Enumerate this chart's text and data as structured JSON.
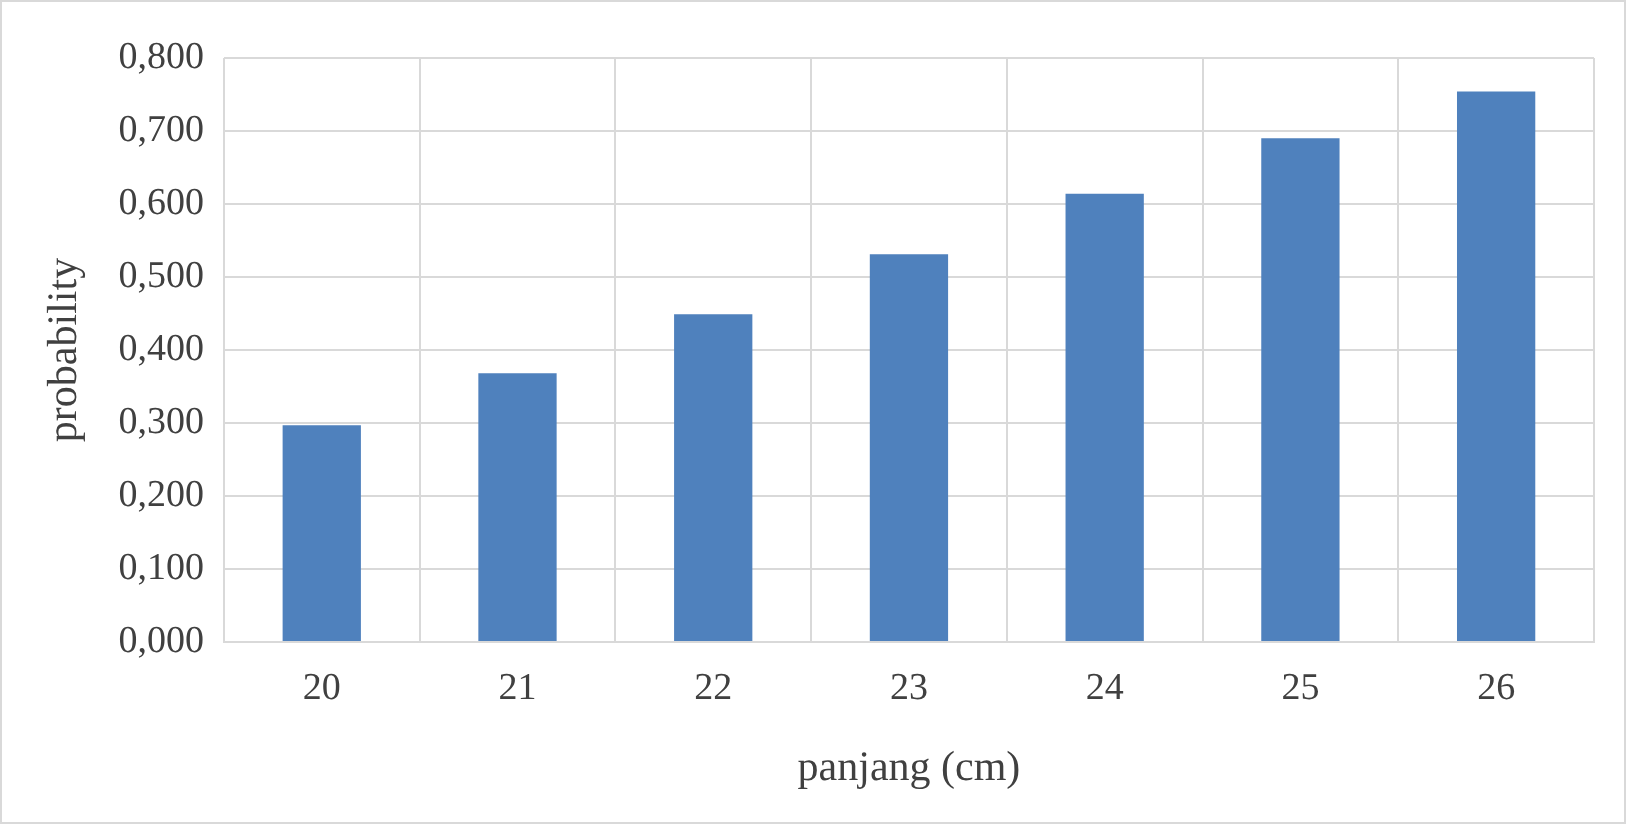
{
  "chart_data": {
    "type": "bar",
    "xlabel": "panjang (cm)",
    "ylabel": "probability",
    "categories": [
      "20",
      "21",
      "22",
      "23",
      "24",
      "25",
      "26"
    ],
    "values": [
      0.297,
      0.368,
      0.449,
      0.531,
      0.614,
      0.69,
      0.754
    ],
    "color": "#4f81bd",
    "ylim": [
      0,
      0.8
    ],
    "yticks": [
      {
        "value": 0,
        "label": "0,000"
      },
      {
        "value": 0.1,
        "label": "0,100"
      },
      {
        "value": 0.2,
        "label": "0,200"
      },
      {
        "value": 0.3,
        "label": "0,300"
      },
      {
        "value": 0.4,
        "label": "0,400"
      },
      {
        "value": 0.5,
        "label": "0,500"
      },
      {
        "value": 0.6,
        "label": "0,600"
      },
      {
        "value": 0.7,
        "label": "0,700"
      },
      {
        "value": 0.8,
        "label": "0,800"
      }
    ],
    "grid": true
  }
}
